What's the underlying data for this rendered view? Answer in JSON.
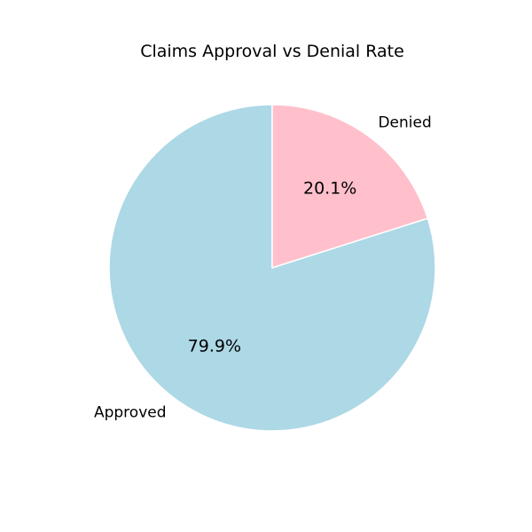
{
  "chart_data": {
    "type": "pie",
    "title": "Claims Approval vs Denial Rate",
    "categories": [
      "Approved",
      "Denied"
    ],
    "values": [
      79.9,
      20.1
    ],
    "percent_labels": [
      "79.9%",
      "20.1%"
    ],
    "colors": [
      "#add8e6",
      "#ffc0cb"
    ],
    "start_angle_deg": 90,
    "direction": "counterclockwise",
    "edge_color": "#ffffff",
    "legend": "none"
  }
}
